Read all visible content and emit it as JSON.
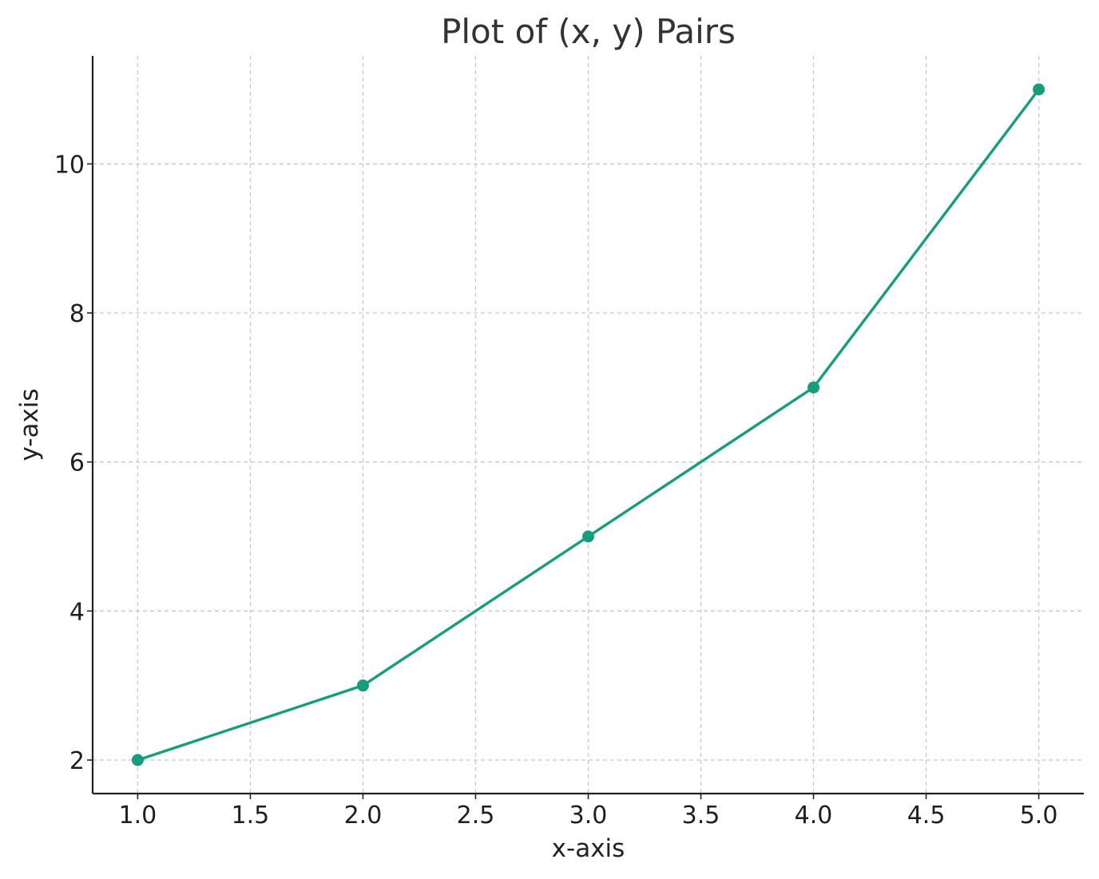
{
  "chart_data": {
    "type": "line",
    "title": "Plot of (x, y) Pairs",
    "xlabel": "x-axis",
    "ylabel": "y-axis",
    "x": [
      1.0,
      2.0,
      3.0,
      4.0,
      5.0
    ],
    "series": [
      {
        "values": [
          2,
          3,
          5,
          7,
          11
        ],
        "color": "#169e7c",
        "marker": "circle"
      }
    ],
    "xlim": [
      0.8,
      5.2
    ],
    "ylim": [
      1.55,
      11.45
    ],
    "xticks": [
      1.0,
      1.5,
      2.0,
      2.5,
      3.0,
      3.5,
      4.0,
      4.5,
      5.0
    ],
    "xtick_labels": [
      "1.0",
      "1.5",
      "2.0",
      "2.5",
      "3.0",
      "3.5",
      "4.0",
      "4.5",
      "5.0"
    ],
    "yticks": [
      2,
      4,
      6,
      8,
      10
    ],
    "ytick_labels": [
      "2",
      "4",
      "6",
      "8",
      "10"
    ],
    "grid": true,
    "legend": "none"
  }
}
